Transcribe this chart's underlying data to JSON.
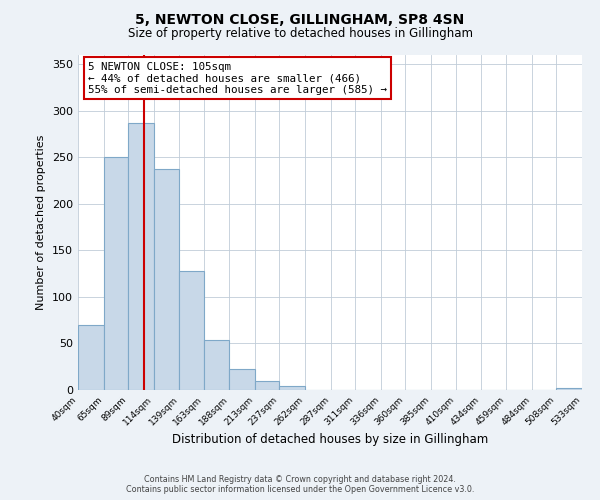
{
  "title": "5, NEWTON CLOSE, GILLINGHAM, SP8 4SN",
  "subtitle": "Size of property relative to detached houses in Gillingham",
  "xlabel": "Distribution of detached houses by size in Gillingham",
  "ylabel": "Number of detached properties",
  "bar_edges": [
    40,
    65,
    89,
    114,
    139,
    163,
    188,
    213,
    237,
    262,
    287,
    311,
    336,
    360,
    385,
    410,
    434,
    459,
    484,
    508,
    533
  ],
  "bar_heights": [
    70,
    250,
    287,
    237,
    128,
    54,
    23,
    10,
    4,
    0,
    0,
    0,
    0,
    0,
    0,
    0,
    0,
    0,
    0,
    2
  ],
  "bar_color": "#c8d8e8",
  "bar_edge_color": "#7fa8c8",
  "property_line_x": 105,
  "property_line_color": "#cc0000",
  "ylim": [
    0,
    360
  ],
  "yticks": [
    0,
    50,
    100,
    150,
    200,
    250,
    300,
    350
  ],
  "tick_labels": [
    "40sqm",
    "65sqm",
    "89sqm",
    "114sqm",
    "139sqm",
    "163sqm",
    "188sqm",
    "213sqm",
    "237sqm",
    "262sqm",
    "287sqm",
    "311sqm",
    "336sqm",
    "360sqm",
    "385sqm",
    "410sqm",
    "434sqm",
    "459sqm",
    "484sqm",
    "508sqm",
    "533sqm"
  ],
  "annotation_title": "5 NEWTON CLOSE: 105sqm",
  "annotation_line1": "← 44% of detached houses are smaller (466)",
  "annotation_line2": "55% of semi-detached houses are larger (585) →",
  "annotation_box_color": "#cc0000",
  "footer_line1": "Contains HM Land Registry data © Crown copyright and database right 2024.",
  "footer_line2": "Contains public sector information licensed under the Open Government Licence v3.0.",
  "background_color": "#edf2f7",
  "plot_bg_color": "#ffffff"
}
